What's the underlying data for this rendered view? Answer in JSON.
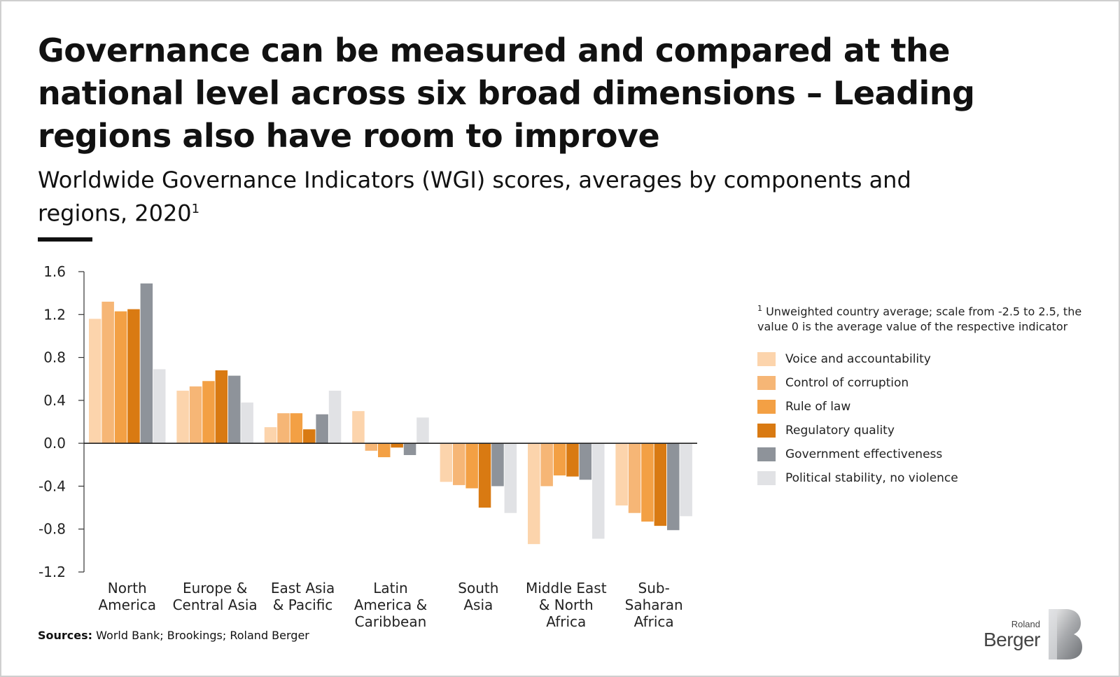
{
  "title": "Governance can be measured and compared at the national level across six broad dimensions – Leading regions also have room to improve",
  "subtitle": "Worldwide Governance Indicators (WGI) scores, averages by components and regions, 2020",
  "subtitle_footnote_marker": "1",
  "footnote_marker": "1",
  "footnote": "Unweighted country average; scale from -2.5 to 2.5, the value 0 is the average value of the respective indicator",
  "sources_label": "Sources:",
  "sources": "World Bank; Brookings; Roland Berger",
  "logo": {
    "small": "Roland",
    "big": "Berger"
  },
  "chart_data": {
    "type": "bar",
    "title": "",
    "xlabel": "",
    "ylabel": "",
    "ylim": [
      -1.2,
      1.6
    ],
    "yticks": [
      "1.6",
      "1.2",
      "0.8",
      "0.4",
      "0.0",
      "-0.4",
      "-0.8",
      "-1.2"
    ],
    "ytick_values": [
      1.6,
      1.2,
      0.8,
      0.4,
      0.0,
      -0.4,
      -0.8,
      -1.2
    ],
    "grid": false,
    "legend_position": "right",
    "categories": [
      [
        "North",
        "America"
      ],
      [
        "Europe &",
        "Central Asia"
      ],
      [
        "East Asia",
        "& Pacific"
      ],
      [
        "Latin",
        "America &",
        "Caribbean"
      ],
      [
        "South",
        "Asia"
      ],
      [
        "Middle East",
        "& North",
        "Africa"
      ],
      [
        "Sub-",
        "Saharan",
        "Africa"
      ]
    ],
    "series": [
      {
        "name": "Voice and accountability",
        "color": "#fcd4ac",
        "values": [
          1.16,
          0.49,
          0.15,
          0.3,
          -0.36,
          -0.94,
          -0.58
        ]
      },
      {
        "name": "Control of corruption",
        "color": "#f6b676",
        "values": [
          1.32,
          0.53,
          0.28,
          -0.07,
          -0.39,
          -0.4,
          -0.65
        ]
      },
      {
        "name": "Rule of law",
        "color": "#f3a044",
        "values": [
          1.23,
          0.58,
          0.28,
          -0.13,
          -0.42,
          -0.3,
          -0.73
        ]
      },
      {
        "name": "Regulatory quality",
        "color": "#d97a12",
        "values": [
          1.25,
          0.68,
          0.13,
          -0.04,
          -0.6,
          -0.31,
          -0.77
        ]
      },
      {
        "name": "Government effectiveness",
        "color": "#8e939a",
        "values": [
          1.49,
          0.63,
          0.27,
          -0.11,
          -0.4,
          -0.34,
          -0.81
        ]
      },
      {
        "name": "Political stability, no violence",
        "color": "#e1e2e5",
        "values": [
          0.69,
          0.38,
          0.49,
          0.24,
          -0.65,
          -0.89,
          -0.68
        ]
      }
    ]
  }
}
